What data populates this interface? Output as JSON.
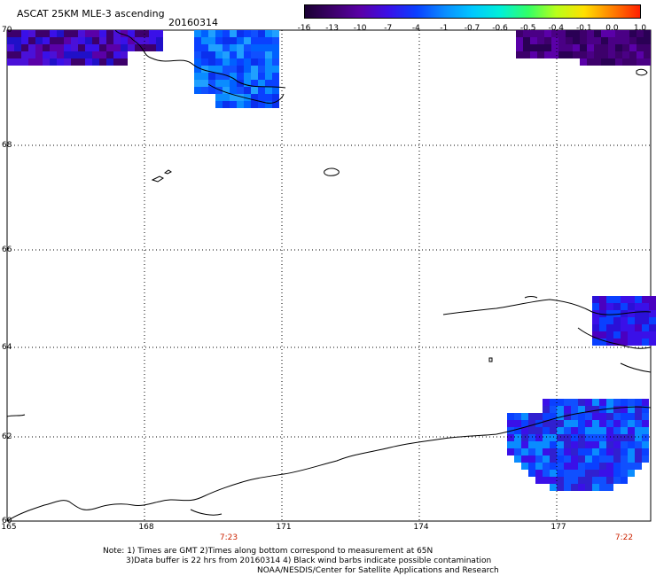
{
  "header": {
    "title": "ASCAT 25KM MLE-3 ascending",
    "date": "20160314"
  },
  "colorbar": {
    "labels": [
      "-16",
      "-13",
      "-10",
      "-7",
      "-4",
      "-1",
      "-0.7",
      "-0.6",
      "-0.5",
      "-0.4",
      "-0.1",
      "0.0",
      "1.0"
    ],
    "colors": [
      "#1a0033",
      "#3d006b",
      "#5a00a8",
      "#3a10e8",
      "#0a40ff",
      "#0a8cff",
      "#00c8ff",
      "#00f0d8",
      "#33ff66",
      "#b8ff1a",
      "#ffe000",
      "#ff8000",
      "#ff2000"
    ]
  },
  "map": {
    "lat_labels": [
      "70",
      "68",
      "66",
      "64",
      "62",
      "60"
    ],
    "lon_labels": [
      "165",
      "168",
      "171",
      "174",
      "177"
    ],
    "time_labels": [
      "7:23",
      "7:22"
    ]
  },
  "notes": {
    "line1": "Note: 1) Times are GMT 2)Times along bottom correspond to measurement at 65N",
    "line2": "3)Data buffer is 22 hrs from 20160314 4) Black wind barbs indicate possible contamination",
    "line3": "NOAA/NESDIS/Center for Satellite Applications and Research"
  }
}
